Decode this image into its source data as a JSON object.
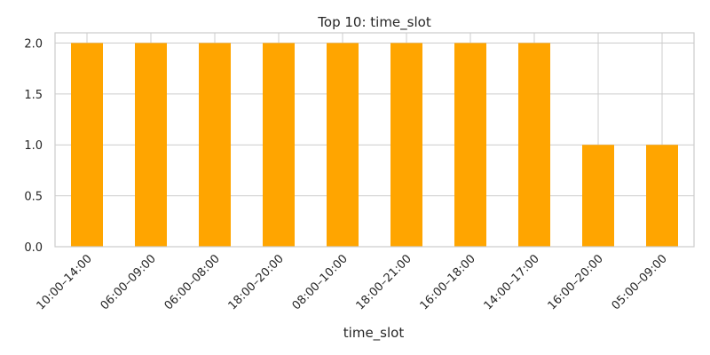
{
  "chart_data": {
    "type": "bar",
    "title": "Top 10: time_slot",
    "xlabel": "time_slot",
    "ylabel": "",
    "categories": [
      "10:00–14:00",
      "06:00–09:00",
      "06:00–08:00",
      "18:00–20:00",
      "08:00–10:00",
      "18:00–21:00",
      "16:00–18:00",
      "14:00–17:00",
      "16:00–20:00",
      "05:00–09:00"
    ],
    "values": [
      2,
      2,
      2,
      2,
      2,
      2,
      2,
      2,
      1,
      1
    ],
    "ylim": [
      0,
      2.1
    ],
    "yticks": [
      "0.0",
      "0.5",
      "1.0",
      "1.5",
      "2.0"
    ],
    "bar_color": "#ffa500",
    "grid": true,
    "legend": "none"
  }
}
